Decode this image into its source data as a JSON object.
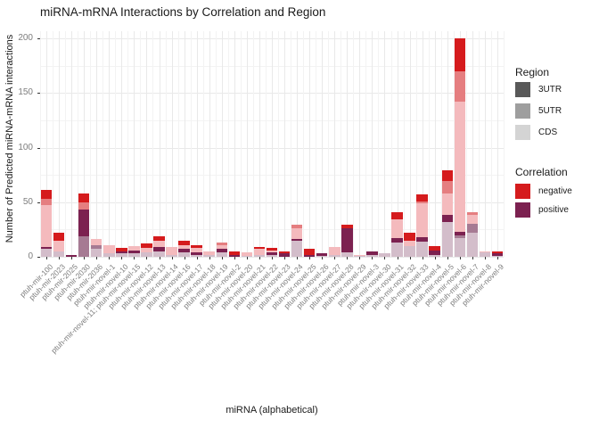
{
  "title": "miRNA-mRNA Interactions by Correlation and Region",
  "x_axis_title": "miRNA (alphabetical)",
  "y_axis_title": "Number of Predicted miRNA-mRNA interactions",
  "y_ticks": [
    0,
    50,
    100,
    150,
    200
  ],
  "legend": {
    "region": {
      "title": "Region",
      "items": [
        {
          "label": "3UTR",
          "color": "#595959"
        },
        {
          "label": "5UTR",
          "color": "#9e9e9e"
        },
        {
          "label": "CDS",
          "color": "#d4d4d4"
        }
      ]
    },
    "correlation": {
      "title": "Correlation",
      "items": [
        {
          "label": "negative",
          "color": "#d51b1d"
        },
        {
          "label": "positive",
          "color": "#7c2150"
        }
      ]
    }
  },
  "chart_data": {
    "type": "bar",
    "stacked": true,
    "title": "miRNA-mRNA Interactions by Correlation and Region",
    "xlabel": "miRNA (alphabetical)",
    "ylabel": "Number of Predicted miRNA-mRNA interactions",
    "ylim": [
      0,
      200
    ],
    "grid": true,
    "legend_position": "right",
    "categories": [
      "ptuh-mir-100",
      "ptuh-mir-2023",
      "ptuh-mir-2025",
      "ptuh-mir-2030",
      "ptuh-mir-2036",
      "ptuh-mir-novel-1",
      "ptuh-mir-novel-10",
      "ptuh-mir-novel-11; ptuh-mir-novel-15",
      "ptuh-mir-novel-12",
      "ptuh-mir-novel-13",
      "ptuh-mir-novel-14",
      "ptuh-mir-novel-16",
      "ptuh-mir-novel-17",
      "ptuh-mir-novel-18",
      "ptuh-mir-novel-19",
      "ptuh-mir-novel-2",
      "ptuh-mir-novel-20",
      "ptuh-mir-novel-21",
      "ptuh-mir-novel-22",
      "ptuh-mir-novel-23",
      "ptuh-mir-novel-24",
      "ptuh-mir-novel-25",
      "ptuh-mir-novel-26",
      "ptuh-mir-novel-27",
      "ptuh-mir-novel-28",
      "ptuh-mir-novel-29",
      "ptuh-mir-novel-3",
      "ptuh-mir-novel-30",
      "ptuh-mir-novel-31",
      "ptuh-mir-novel-32",
      "ptuh-mir-novel-33",
      "ptuh-mir-novel-4",
      "ptuh-mir-novel-5",
      "ptuh-mir-novel-6",
      "ptuh-mir-novel-7",
      "ptuh-mir-novel-8",
      "ptuh-mir-novel-9"
    ],
    "series": [
      {
        "name": "CDS positive",
        "region": "CDS",
        "correlation": "positive",
        "color": "#d3bdca",
        "values": [
          7,
          5,
          0,
          0,
          7,
          3,
          3,
          3,
          4,
          5,
          2,
          4,
          2,
          2,
          4,
          0,
          1,
          2,
          2,
          0,
          15,
          0,
          1,
          2,
          4,
          1,
          2,
          3,
          13,
          10,
          14,
          2,
          32,
          17,
          22,
          4,
          1
        ]
      },
      {
        "name": "5UTR positive",
        "region": "5UTR",
        "correlation": "positive",
        "color": "#a67a93",
        "values": [
          0,
          0,
          0,
          19,
          4,
          0,
          0,
          0,
          0,
          0,
          0,
          0,
          0,
          0,
          0,
          0,
          0,
          0,
          0,
          0,
          0,
          0,
          0,
          0,
          0,
          0,
          0,
          0,
          0,
          0,
          0,
          0,
          0,
          3,
          8,
          0,
          0
        ]
      },
      {
        "name": "3UTR positive",
        "region": "3UTR",
        "correlation": "positive",
        "color": "#7c2150",
        "values": [
          2,
          0,
          2,
          24,
          0,
          0,
          2,
          3,
          0,
          4,
          0,
          3,
          2,
          0,
          3,
          2,
          0,
          0,
          2,
          3,
          1,
          2,
          2,
          0,
          22,
          0,
          3,
          0,
          4,
          0,
          4,
          4,
          6,
          3,
          0,
          0,
          2
        ]
      },
      {
        "name": "CDS negative",
        "region": "CDS",
        "correlation": "negative",
        "color": "#f4babd",
        "values": [
          38,
          10,
          0,
          0,
          5,
          8,
          0,
          4,
          4,
          6,
          7,
          4,
          4,
          3,
          4,
          0,
          3,
          5,
          2,
          0,
          10,
          0,
          0,
          7,
          0,
          1,
          0,
          0,
          17,
          5,
          31,
          0,
          20,
          119,
          8,
          1,
          0
        ]
      },
      {
        "name": "5UTR negative",
        "region": "5UTR",
        "correlation": "negative",
        "color": "#e57e80",
        "values": [
          6,
          0,
          0,
          7,
          0,
          0,
          0,
          0,
          0,
          0,
          0,
          0,
          0,
          0,
          2,
          0,
          0,
          0,
          0,
          0,
          3,
          0,
          0,
          0,
          0,
          0,
          0,
          0,
          0,
          0,
          2,
          0,
          11,
          28,
          3,
          0,
          0
        ]
      },
      {
        "name": "3UTR negative",
        "region": "3UTR",
        "correlation": "negative",
        "color": "#d51b1d",
        "values": [
          8,
          7,
          0,
          8,
          0,
          0,
          3,
          0,
          4,
          4,
          0,
          4,
          3,
          0,
          0,
          3,
          0,
          2,
          2,
          2,
          0,
          5,
          0,
          0,
          3,
          0,
          0,
          0,
          7,
          7,
          6,
          4,
          10,
          30,
          0,
          0,
          2
        ]
      }
    ]
  },
  "style_colors": {
    "grid_major": "#e9e9e9",
    "grid_minor": "#f3f3f3",
    "axis_text": "#7d7d7d",
    "tick_mark": "#333333"
  }
}
